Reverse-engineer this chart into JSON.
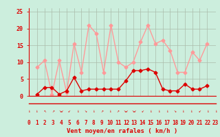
{
  "hours": [
    0,
    1,
    2,
    3,
    4,
    5,
    6,
    7,
    8,
    9,
    10,
    11,
    12,
    13,
    14,
    15,
    16,
    17,
    18,
    19,
    20,
    21,
    22,
    23
  ],
  "wind_mean": [
    0.5,
    2.5,
    2.5,
    0.5,
    1.5,
    5.5,
    1.5,
    2.0,
    2.0,
    2.0,
    2.0,
    2.0,
    4.5,
    7.5,
    7.5,
    8.0,
    7.0,
    2.0,
    1.5,
    1.5,
    3.5,
    2.0,
    2.0,
    3.0
  ],
  "wind_gust": [
    8.5,
    10.5,
    0.5,
    10.5,
    1.0,
    15.5,
    7.0,
    21.0,
    18.5,
    7.0,
    21.0,
    10.0,
    8.5,
    10.0,
    16.0,
    21.0,
    15.5,
    16.5,
    13.5,
    7.0,
    7.0,
    13.0,
    10.5,
    15.5
  ],
  "mean_color": "#dd0000",
  "gust_color": "#ff9999",
  "bg_color": "#cceedd",
  "grid_color": "#aabbaa",
  "axis_color": "#dd0000",
  "xlabel": "Vent moyen/en rafales ( km/h )",
  "ylim": [
    0,
    26
  ],
  "yticks": [
    0,
    5,
    10,
    15,
    20,
    25
  ],
  "marker": "D",
  "marker_size": 2.5,
  "linewidth": 1.0,
  "arrow_symbols": [
    "↓",
    "↓",
    "↖",
    "↗",
    "↘↙",
    "↙",
    "↓",
    "↘",
    "↓",
    "↗",
    "↓",
    "↗",
    "↘↙",
    "↘↙",
    "↙",
    "↓",
    "↓",
    "↓",
    "↘",
    "↓",
    "↓",
    "↙",
    "↓",
    "↓"
  ]
}
